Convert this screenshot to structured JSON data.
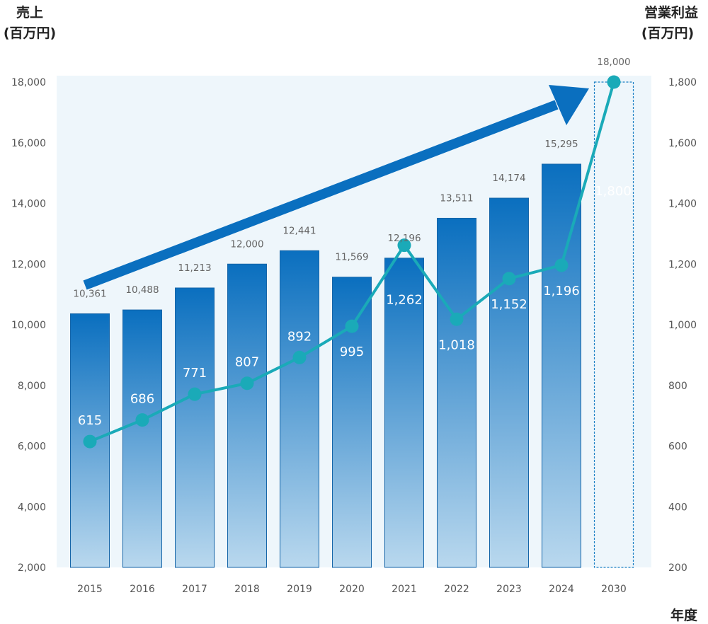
{
  "chart_data": {
    "type": "bar+line",
    "title": "",
    "y_left_title": [
      "売上",
      "(百万円)"
    ],
    "y_right_title": [
      "営業利益",
      "(百万円)"
    ],
    "x_title": "年度",
    "categories": [
      "2015",
      "2016",
      "2017",
      "2018",
      "2019",
      "2020",
      "2021",
      "2022",
      "2023",
      "2024",
      "2030"
    ],
    "y_left_range": [
      2000,
      18000
    ],
    "y_left_ticks": [
      "2,000",
      "4,000",
      "6,000",
      "8,000",
      "10,000",
      "12,000",
      "14,000",
      "16,000",
      "18,000"
    ],
    "y_right_range": [
      200,
      1800
    ],
    "y_right_ticks": [
      "200",
      "400",
      "600",
      "800",
      "1,000",
      "1,200",
      "1,400",
      "1,600",
      "1,800"
    ],
    "series": [
      {
        "type": "bar",
        "axis": "left",
        "values": [
          10361,
          10488,
          11213,
          12000,
          12441,
          11569,
          12196,
          13511,
          14174,
          15295,
          18000
        ],
        "labels": [
          "10,361",
          "10,488",
          "11,213",
          "12,000",
          "12,441",
          "11,569",
          "12,196",
          "13,511",
          "14,174",
          "15,295",
          "18,000"
        ],
        "target_index": 10
      },
      {
        "type": "line",
        "axis": "right",
        "values": [
          615,
          686,
          771,
          807,
          892,
          995,
          1262,
          1018,
          1152,
          1196,
          1800
        ],
        "labels": [
          "615",
          "686",
          "771",
          "807",
          "892",
          "995",
          "1,262",
          "1,018",
          "1,152",
          "1,196",
          "1,800"
        ]
      }
    ],
    "annotation": "upward trend arrow",
    "colors": {
      "bar_top": "#0a6fbf",
      "bar_bottom": "#b9d8ee",
      "line": "#1aaab8",
      "arrow": "#0a6fbf",
      "plot_bg": "#eef6fb",
      "target_outline": "#1a7fc4",
      "label_highlight": "#1aaab8"
    },
    "grid": false
  }
}
